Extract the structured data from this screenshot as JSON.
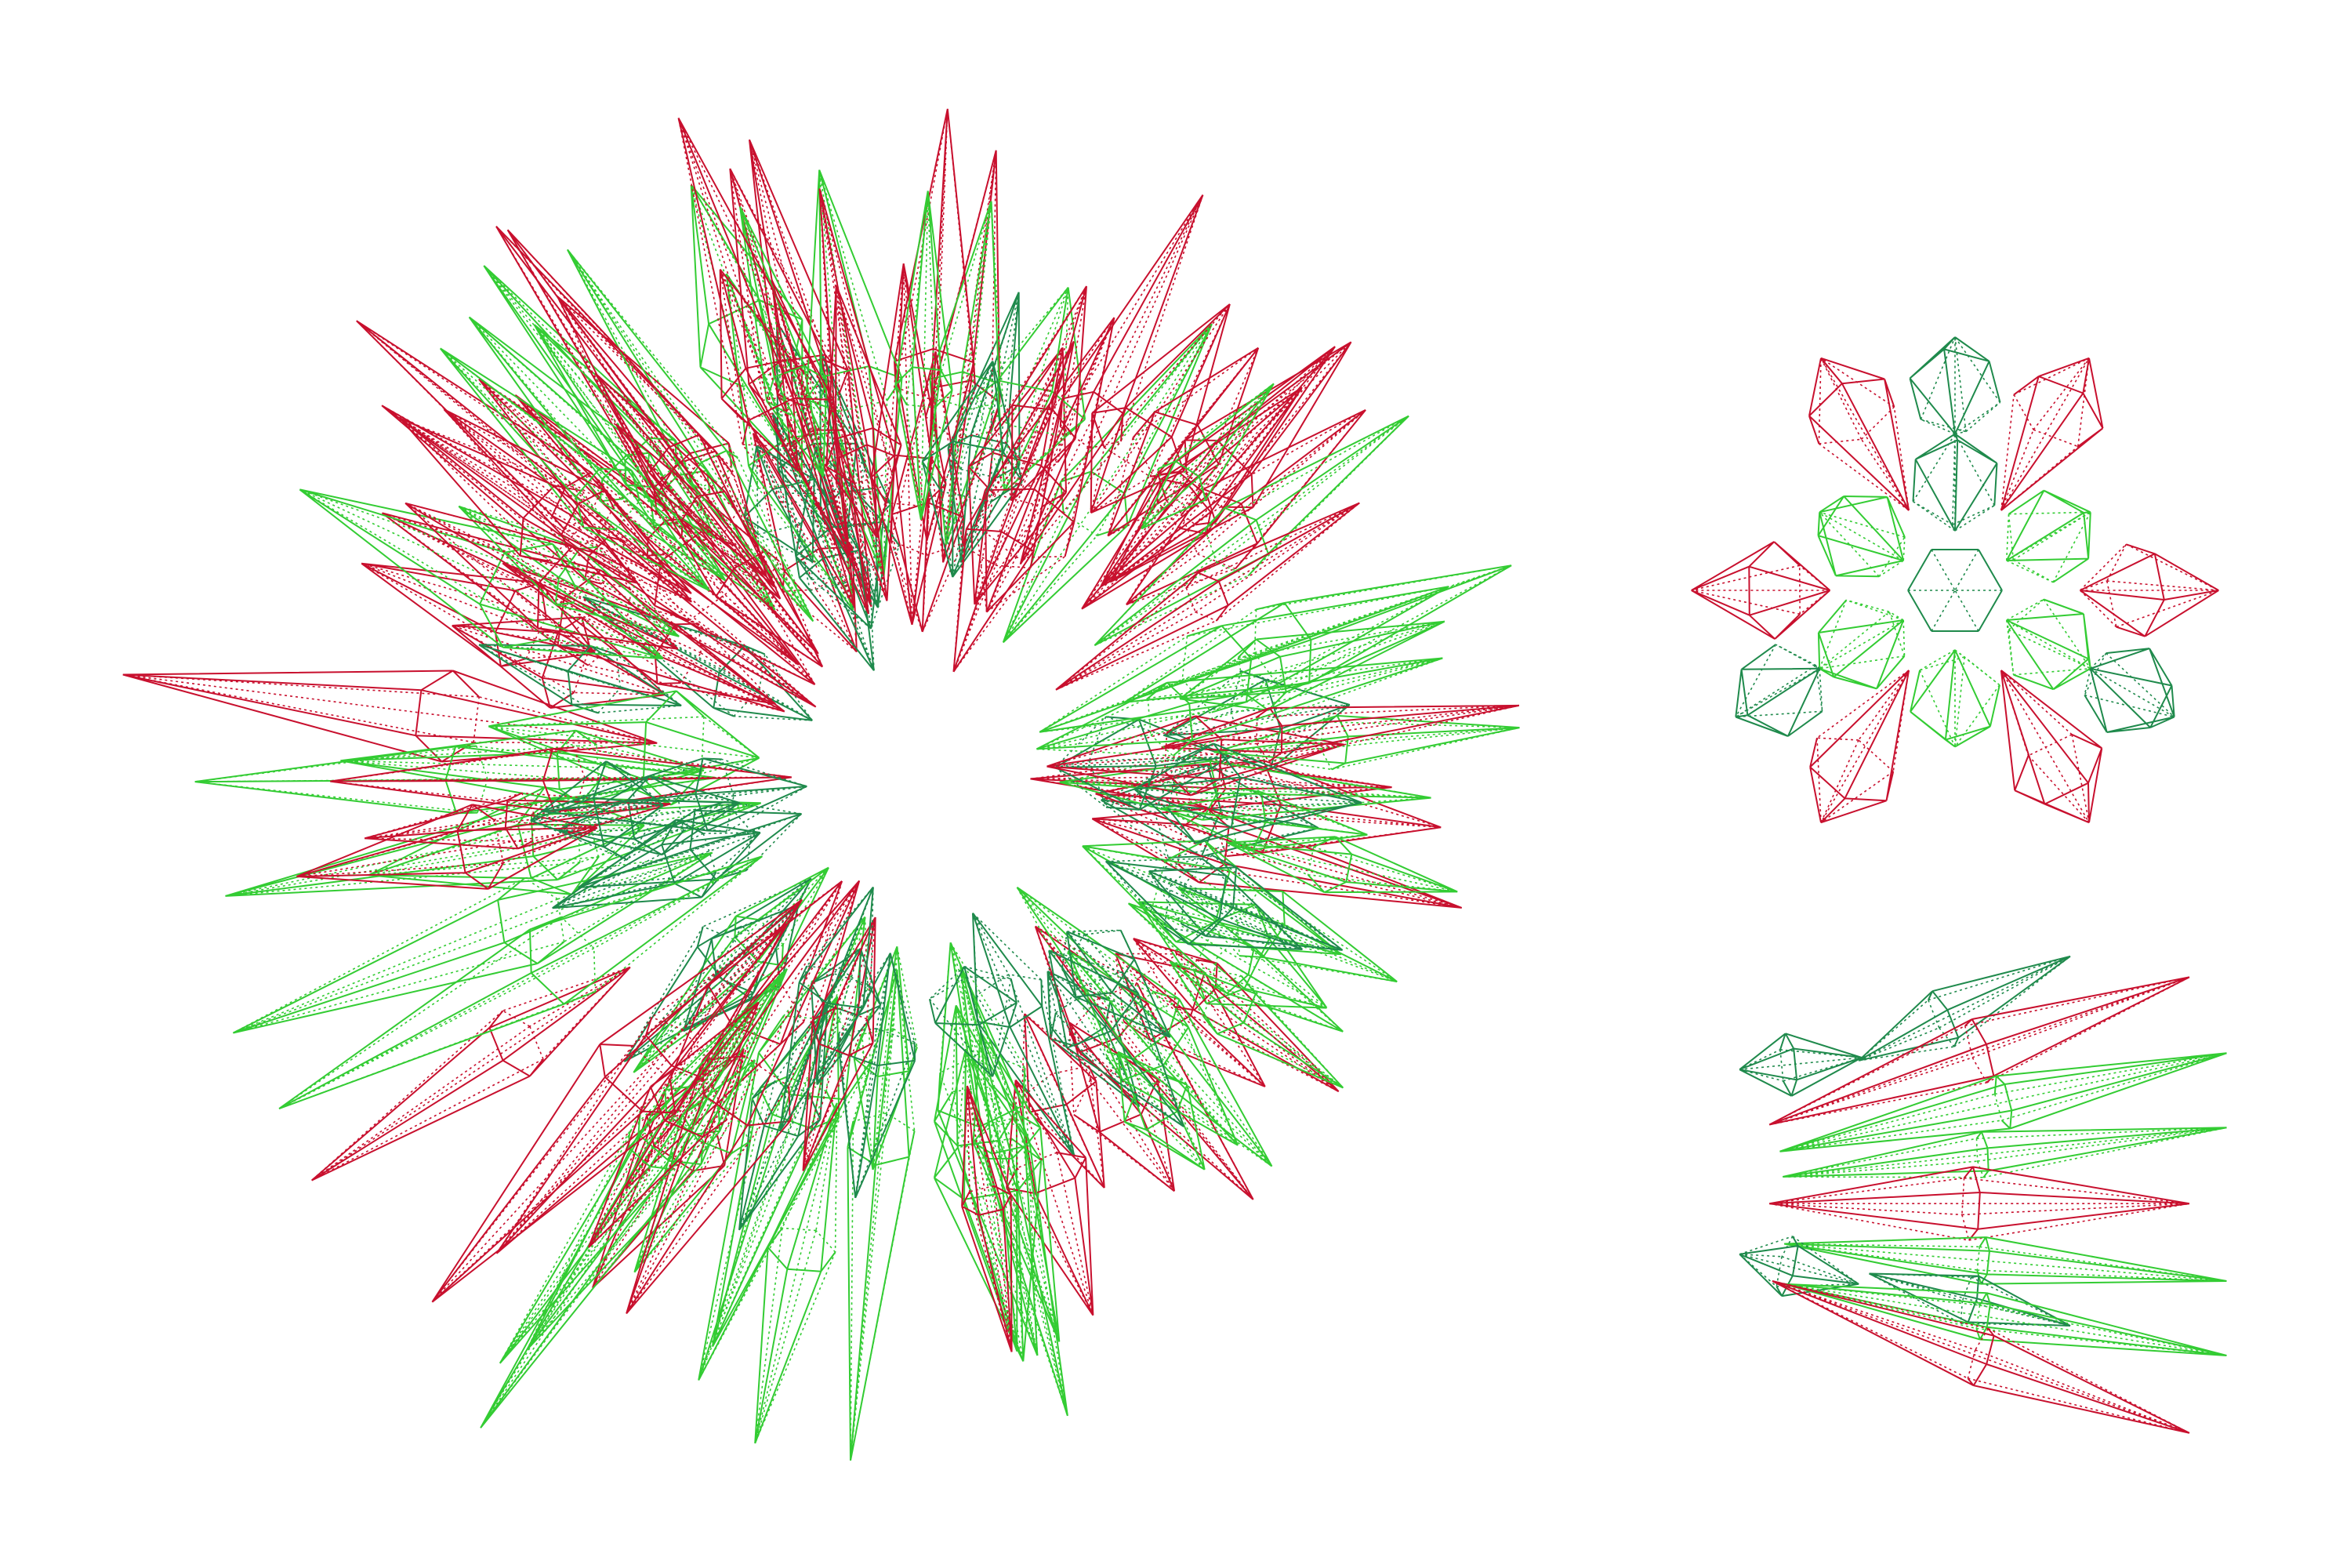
{
  "colors": {
    "background": "#ffffff",
    "red": "#c8102e",
    "green": "#33cc33",
    "dark_green": "#1f8a4c"
  },
  "views": [
    {
      "id": "perspective-view",
      "style": "wireframe crystal cluster, radial"
    },
    {
      "id": "top-view",
      "style": "wireframe, six-fold symmetric"
    },
    {
      "id": "side-view",
      "style": "wireframe, horizontal profiles"
    }
  ]
}
